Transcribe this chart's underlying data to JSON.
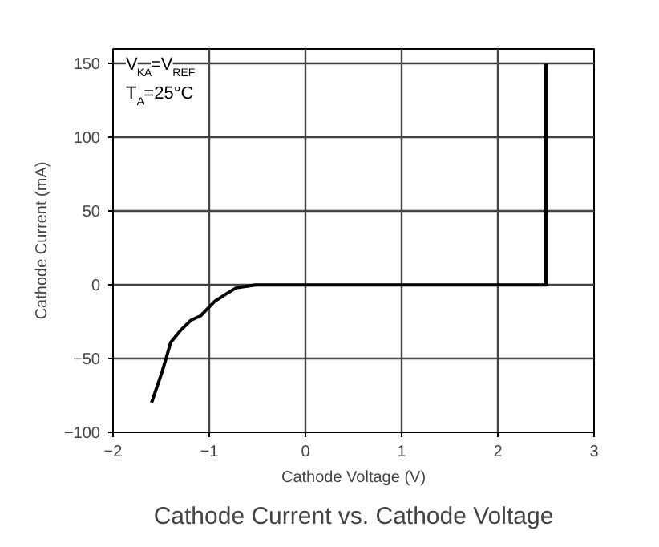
{
  "chart_data": {
    "type": "line",
    "title": "Cathode Current vs. Cathode Voltage",
    "xlabel": "Cathode Voltage (V)",
    "ylabel": "Cathode Current (mA)",
    "annotations": [
      "V$_{KA}$=V$_{REF}$",
      "T$_{A}$=25°C"
    ],
    "series": [
      {
        "color": "#000000",
        "x": [
          -1.6,
          -1.49,
          -1.4,
          -1.3,
          -1.19,
          -1.09,
          -0.94,
          -0.82,
          -0.72,
          -0.52,
          0,
          1,
          2,
          2.5,
          2.5
        ],
        "values": [
          -80,
          -59,
          -39,
          -31,
          -24,
          -21,
          -11,
          -6,
          -2,
          0,
          0,
          0,
          0,
          0,
          150
        ]
      }
    ],
    "xlim": [
      -2,
      3
    ],
    "xticks": [
      -2,
      -1,
      0,
      1,
      2,
      3
    ],
    "ylim": [
      -100,
      160
    ],
    "yticks": [
      -100,
      -50,
      0,
      50,
      100,
      150
    ],
    "grid": true,
    "marker": "none",
    "line_style": "solid"
  }
}
